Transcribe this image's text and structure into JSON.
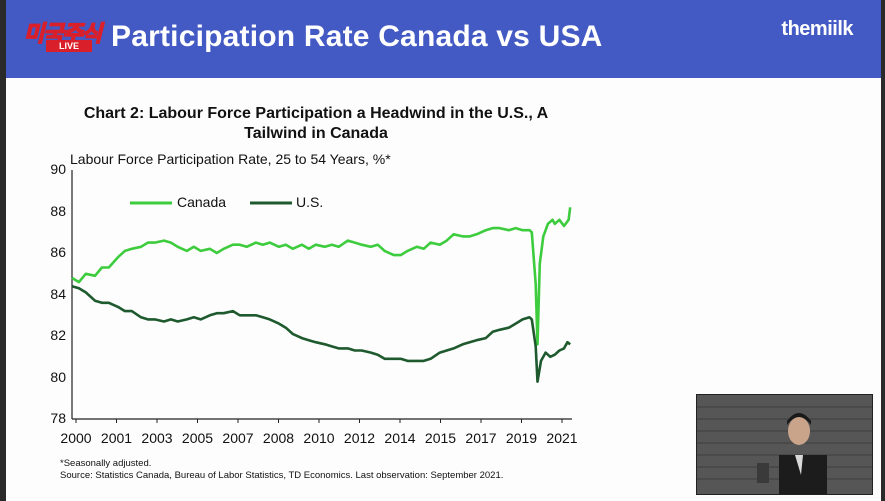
{
  "header": {
    "logo_text": "미국주식",
    "logo_badge": "LIVE",
    "title": "Participation Rate Canada vs USA",
    "brand": "themiilk"
  },
  "chart_data": {
    "type": "line",
    "title": "Chart 2: Labour Force Participation a Headwind in the U.S., A Tailwind in Canada",
    "subtitle": "Labour Force Participation Rate, 25 to 54 Years, %*",
    "ylim": [
      78,
      90
    ],
    "yticks": [
      "90",
      "88",
      "86",
      "84",
      "82",
      "80",
      "78"
    ],
    "xlim": [
      2000,
      2021.75
    ],
    "xticks": [
      "2000",
      "2001",
      "2003",
      "2005",
      "2007",
      "2008",
      "2010",
      "2012",
      "2014",
      "2015",
      "2017",
      "2019",
      "2021"
    ],
    "legend_position": "top-left",
    "series": [
      {
        "name": "Canada",
        "color": "#3dcc3d",
        "points": [
          [
            2000.0,
            84.8
          ],
          [
            2000.3,
            84.6
          ],
          [
            2000.6,
            85.0
          ],
          [
            2001.0,
            84.9
          ],
          [
            2001.3,
            85.3
          ],
          [
            2001.6,
            85.3
          ],
          [
            2002.0,
            85.8
          ],
          [
            2002.3,
            86.1
          ],
          [
            2002.6,
            86.2
          ],
          [
            2003.0,
            86.3
          ],
          [
            2003.3,
            86.5
          ],
          [
            2003.6,
            86.5
          ],
          [
            2004.0,
            86.6
          ],
          [
            2004.3,
            86.5
          ],
          [
            2004.6,
            86.3
          ],
          [
            2005.0,
            86.1
          ],
          [
            2005.3,
            86.3
          ],
          [
            2005.6,
            86.1
          ],
          [
            2006.0,
            86.2
          ],
          [
            2006.3,
            86.0
          ],
          [
            2006.6,
            86.2
          ],
          [
            2007.0,
            86.4
          ],
          [
            2007.3,
            86.4
          ],
          [
            2007.6,
            86.3
          ],
          [
            2008.0,
            86.5
          ],
          [
            2008.3,
            86.4
          ],
          [
            2008.6,
            86.5
          ],
          [
            2009.0,
            86.3
          ],
          [
            2009.3,
            86.4
          ],
          [
            2009.6,
            86.2
          ],
          [
            2010.0,
            86.4
          ],
          [
            2010.3,
            86.2
          ],
          [
            2010.6,
            86.4
          ],
          [
            2011.0,
            86.3
          ],
          [
            2011.3,
            86.4
          ],
          [
            2011.6,
            86.3
          ],
          [
            2012.0,
            86.6
          ],
          [
            2012.3,
            86.5
          ],
          [
            2012.6,
            86.4
          ],
          [
            2013.0,
            86.3
          ],
          [
            2013.3,
            86.4
          ],
          [
            2013.6,
            86.1
          ],
          [
            2014.0,
            85.9
          ],
          [
            2014.3,
            85.9
          ],
          [
            2014.6,
            86.1
          ],
          [
            2015.0,
            86.3
          ],
          [
            2015.3,
            86.2
          ],
          [
            2015.6,
            86.5
          ],
          [
            2016.0,
            86.4
          ],
          [
            2016.3,
            86.6
          ],
          [
            2016.6,
            86.9
          ],
          [
            2017.0,
            86.8
          ],
          [
            2017.3,
            86.8
          ],
          [
            2017.6,
            86.9
          ],
          [
            2018.0,
            87.1
          ],
          [
            2018.3,
            87.2
          ],
          [
            2018.6,
            87.2
          ],
          [
            2019.0,
            87.1
          ],
          [
            2019.3,
            87.2
          ],
          [
            2019.6,
            87.1
          ],
          [
            2019.9,
            87.1
          ],
          [
            2020.0,
            87.0
          ],
          [
            2020.17,
            84.5
          ],
          [
            2020.25,
            81.6
          ],
          [
            2020.35,
            85.5
          ],
          [
            2020.5,
            86.8
          ],
          [
            2020.7,
            87.4
          ],
          [
            2020.9,
            87.6
          ],
          [
            2021.0,
            87.4
          ],
          [
            2021.2,
            87.6
          ],
          [
            2021.4,
            87.3
          ],
          [
            2021.6,
            87.6
          ],
          [
            2021.67,
            88.2
          ]
        ]
      },
      {
        "name": "U.S.",
        "color": "#1e5a2e",
        "points": [
          [
            2000.0,
            84.4
          ],
          [
            2000.3,
            84.3
          ],
          [
            2000.6,
            84.1
          ],
          [
            2001.0,
            83.7
          ],
          [
            2001.3,
            83.6
          ],
          [
            2001.6,
            83.6
          ],
          [
            2002.0,
            83.4
          ],
          [
            2002.3,
            83.2
          ],
          [
            2002.6,
            83.2
          ],
          [
            2003.0,
            82.9
          ],
          [
            2003.3,
            82.8
          ],
          [
            2003.6,
            82.8
          ],
          [
            2004.0,
            82.7
          ],
          [
            2004.3,
            82.8
          ],
          [
            2004.6,
            82.7
          ],
          [
            2005.0,
            82.8
          ],
          [
            2005.3,
            82.9
          ],
          [
            2005.6,
            82.8
          ],
          [
            2006.0,
            83.0
          ],
          [
            2006.3,
            83.1
          ],
          [
            2006.6,
            83.1
          ],
          [
            2007.0,
            83.2
          ],
          [
            2007.3,
            83.0
          ],
          [
            2007.6,
            83.0
          ],
          [
            2008.0,
            83.0
          ],
          [
            2008.3,
            82.9
          ],
          [
            2008.6,
            82.8
          ],
          [
            2009.0,
            82.6
          ],
          [
            2009.3,
            82.4
          ],
          [
            2009.6,
            82.1
          ],
          [
            2010.0,
            81.9
          ],
          [
            2010.3,
            81.8
          ],
          [
            2010.6,
            81.7
          ],
          [
            2011.0,
            81.6
          ],
          [
            2011.3,
            81.5
          ],
          [
            2011.6,
            81.4
          ],
          [
            2012.0,
            81.4
          ],
          [
            2012.3,
            81.3
          ],
          [
            2012.6,
            81.3
          ],
          [
            2013.0,
            81.2
          ],
          [
            2013.3,
            81.1
          ],
          [
            2013.6,
            80.9
          ],
          [
            2014.0,
            80.9
          ],
          [
            2014.3,
            80.9
          ],
          [
            2014.6,
            80.8
          ],
          [
            2015.0,
            80.8
          ],
          [
            2015.3,
            80.8
          ],
          [
            2015.6,
            80.9
          ],
          [
            2016.0,
            81.2
          ],
          [
            2016.3,
            81.3
          ],
          [
            2016.6,
            81.4
          ],
          [
            2017.0,
            81.6
          ],
          [
            2017.3,
            81.7
          ],
          [
            2017.6,
            81.8
          ],
          [
            2018.0,
            81.9
          ],
          [
            2018.3,
            82.2
          ],
          [
            2018.6,
            82.3
          ],
          [
            2019.0,
            82.4
          ],
          [
            2019.3,
            82.6
          ],
          [
            2019.6,
            82.8
          ],
          [
            2019.9,
            82.9
          ],
          [
            2020.0,
            82.8
          ],
          [
            2020.17,
            81.5
          ],
          [
            2020.25,
            79.8
          ],
          [
            2020.4,
            80.8
          ],
          [
            2020.6,
            81.2
          ],
          [
            2020.8,
            81.0
          ],
          [
            2021.0,
            81.1
          ],
          [
            2021.2,
            81.3
          ],
          [
            2021.4,
            81.4
          ],
          [
            2021.55,
            81.7
          ],
          [
            2021.67,
            81.6
          ]
        ]
      }
    ],
    "footnotes": [
      "*Seasonally adjusted.",
      "Source: Statistics Canada, Bureau of Labor Statistics, TD Economics. Last observation: September 2021."
    ]
  }
}
